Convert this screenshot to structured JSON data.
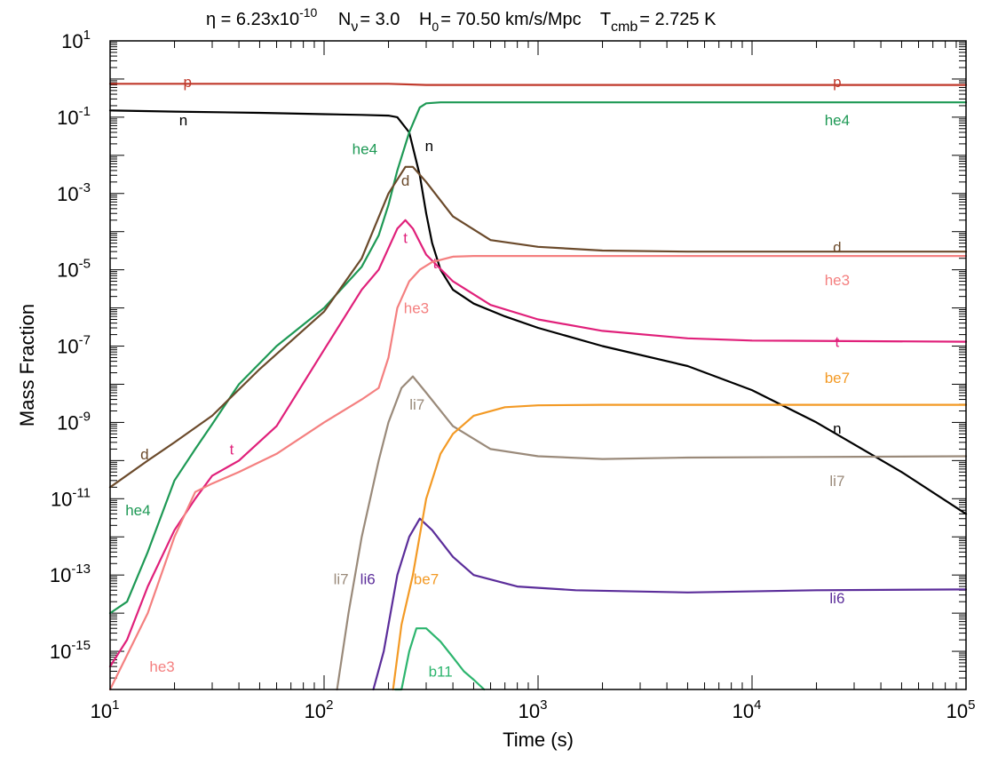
{
  "title": {
    "eta_label": "η = 6.23x10",
    "eta_exp": "-10",
    "nnu_label": "N",
    "nnu_sub": "ν",
    "nnu_value": "=  3.0",
    "h0_label": "H",
    "h0_sub": "0",
    "h0_value": "=  70.50 km/s/Mpc",
    "tcmb_label": "T",
    "tcmb_sub": "cmb",
    "tcmb_value": "=  2.725 K"
  },
  "chart_data": {
    "type": "line",
    "xlabel": "Time (s)",
    "ylabel": "Mass Fraction",
    "xscale": "log",
    "yscale": "log",
    "xlim": [
      10,
      100000
    ],
    "ylim": [
      1e-16,
      10
    ],
    "x_tick_labels": [
      {
        "base": "10",
        "exp": "1",
        "value": 10
      },
      {
        "base": "10",
        "exp": "2",
        "value": 100
      },
      {
        "base": "10",
        "exp": "3",
        "value": 1000
      },
      {
        "base": "10",
        "exp": "4",
        "value": 10000
      },
      {
        "base": "10",
        "exp": "5",
        "value": 100000
      }
    ],
    "y_tick_labels": [
      {
        "base": "10",
        "exp": "1",
        "value": 10
      },
      {
        "base": "10",
        "exp": "-1",
        "value": 0.1
      },
      {
        "base": "10",
        "exp": "-3",
        "value": 0.001
      },
      {
        "base": "10",
        "exp": "-5",
        "value": 1e-05
      },
      {
        "base": "10",
        "exp": "-7",
        "value": 1e-07
      },
      {
        "base": "10",
        "exp": "-9",
        "value": 1e-09
      },
      {
        "base": "10",
        "exp": "-11",
        "value": 1e-11
      },
      {
        "base": "10",
        "exp": "-13",
        "value": 1e-13
      },
      {
        "base": "10",
        "exp": "-15",
        "value": 1e-15
      }
    ],
    "series": [
      {
        "name": "p",
        "color": "#c0392b",
        "x": [
          10,
          100,
          200,
          300,
          1000,
          100000
        ],
        "y": [
          0.75,
          0.75,
          0.75,
          0.7,
          0.7,
          0.7
        ],
        "labels": [
          {
            "text": "p",
            "x": 23,
            "y": 0.85
          },
          {
            "text": "p",
            "x": 25000,
            "y": 0.85
          }
        ]
      },
      {
        "name": "n",
        "color": "#000000",
        "x": [
          10,
          20,
          50,
          100,
          150,
          200,
          220,
          250,
          280,
          300,
          320,
          350,
          400,
          500,
          700,
          1000,
          2000,
          5000,
          10000,
          20000,
          50000,
          100000
        ],
        "y": [
          0.15,
          0.14,
          0.13,
          0.12,
          0.115,
          0.11,
          0.1,
          0.04,
          0.003,
          0.0003,
          5e-05,
          1e-05,
          3e-06,
          1.3e-06,
          6e-07,
          3e-07,
          1e-07,
          3e-08,
          7e-09,
          1e-09,
          5e-11,
          4e-12
        ],
        "labels": [
          {
            "text": "n",
            "x": 22,
            "y": 0.085
          },
          {
            "text": "n",
            "x": 310,
            "y": 0.018
          },
          {
            "text": "n",
            "x": 25000,
            "y": 7e-10
          }
        ]
      },
      {
        "name": "he4",
        "color": "#1e9955",
        "x": [
          10,
          12,
          15,
          20,
          25,
          30,
          40,
          60,
          100,
          150,
          180,
          200,
          220,
          250,
          280,
          300,
          350,
          1000,
          100000
        ],
        "y": [
          1e-14,
          2e-14,
          4e-13,
          3e-11,
          2e-10,
          9e-10,
          1e-08,
          1e-07,
          1e-06,
          1.2e-05,
          8e-05,
          0.0005,
          0.004,
          0.04,
          0.18,
          0.23,
          0.245,
          0.245,
          0.245
        ],
        "labels": [
          {
            "text": "he4",
            "x": 13.5,
            "y": 5e-12
          },
          {
            "text": "he4",
            "x": 155,
            "y": 0.015
          },
          {
            "text": "he4",
            "x": 25000,
            "y": 0.085
          }
        ]
      },
      {
        "name": "d",
        "color": "#6b4a2b",
        "x": [
          10,
          15,
          20,
          30,
          50,
          100,
          150,
          200,
          240,
          260,
          300,
          400,
          600,
          1000,
          2000,
          5000,
          100000
        ],
        "y": [
          2e-11,
          1e-10,
          3e-10,
          1.5e-09,
          2.5e-08,
          8e-07,
          2e-05,
          0.001,
          0.005,
          0.005,
          0.002,
          0.00025,
          6e-05,
          4e-05,
          3.2e-05,
          3e-05,
          3e-05
        ],
        "labels": [
          {
            "text": "d",
            "x": 14.5,
            "y": 1.5e-10
          },
          {
            "text": "d",
            "x": 240,
            "y": 0.0022
          },
          {
            "text": "d",
            "x": 25000,
            "y": 4e-05
          }
        ]
      },
      {
        "name": "t",
        "color": "#e0207a",
        "x": [
          10,
          12,
          15,
          20,
          25,
          30,
          40,
          60,
          100,
          150,
          180,
          220,
          240,
          260,
          300,
          400,
          600,
          1000,
          2000,
          5000,
          10000,
          100000
        ],
        "y": [
          4e-16,
          2e-15,
          5e-14,
          1.5e-12,
          1e-11,
          4e-11,
          1e-10,
          8e-10,
          8e-08,
          3e-06,
          1e-05,
          0.00012,
          0.0002,
          0.00012,
          2.5e-05,
          5e-06,
          1.2e-06,
          5e-07,
          2.5e-07,
          1.6e-07,
          1.4e-07,
          1.3e-07
        ],
        "labels": [
          {
            "text": "t",
            "x": 37,
            "y": 2e-10
          },
          {
            "text": "t",
            "x": 240,
            "y": 7e-05
          },
          {
            "text": "t",
            "x": 330,
            "y": 1.5e-05
          },
          {
            "text": "t",
            "x": 25000,
            "y": 1.3e-07
          }
        ]
      },
      {
        "name": "he3",
        "color": "#f48080",
        "x": [
          10,
          15,
          20,
          25,
          30,
          40,
          60,
          100,
          150,
          180,
          200,
          220,
          250,
          280,
          320,
          400,
          500,
          1000,
          100000
        ],
        "y": [
          1e-16,
          1e-14,
          1e-12,
          1.5e-11,
          2.5e-11,
          5e-11,
          1.5e-10,
          1e-09,
          4e-09,
          8e-09,
          5e-08,
          1e-06,
          5e-06,
          1e-05,
          1.6e-05,
          2.2e-05,
          2.3e-05,
          2.3e-05,
          2.3e-05
        ],
        "labels": [
          {
            "text": "he3",
            "x": 17.5,
            "y": 4e-16
          },
          {
            "text": "he3",
            "x": 270,
            "y": 1e-06
          },
          {
            "text": "he3",
            "x": 25000,
            "y": 5.5e-06
          }
        ]
      },
      {
        "name": "li7",
        "color": "#9a8a7a",
        "x": [
          115,
          130,
          150,
          180,
          200,
          230,
          260,
          300,
          400,
          600,
          1000,
          2000,
          5000,
          100000
        ],
        "y": [
          1e-16,
          1e-14,
          1e-12,
          1e-10,
          1e-09,
          8e-09,
          1.6e-08,
          6e-09,
          8e-10,
          2e-10,
          1.3e-10,
          1.1e-10,
          1.2e-10,
          1.3e-10
        ],
        "labels": [
          {
            "text": "li7",
            "x": 272,
            "y": 3e-09
          },
          {
            "text": "li7",
            "x": 120,
            "y": 8e-14
          },
          {
            "text": "li7",
            "x": 25000,
            "y": 3e-11
          }
        ]
      },
      {
        "name": "li6",
        "color": "#5b2d9a",
        "x": [
          170,
          190,
          220,
          250,
          280,
          320,
          400,
          500,
          800,
          1500,
          5000,
          20000,
          100000
        ],
        "y": [
          1e-16,
          1e-15,
          1e-13,
          1e-12,
          3e-12,
          1.5e-12,
          3e-13,
          1e-13,
          5e-14,
          4e-14,
          3.5e-14,
          4e-14,
          4.2e-14
        ],
        "labels": [
          {
            "text": "li6",
            "x": 160,
            "y": 8e-14
          },
          {
            "text": "li6",
            "x": 25000,
            "y": 2.5e-14
          }
        ]
      },
      {
        "name": "be7",
        "color": "#f39a25",
        "x": [
          210,
          230,
          260,
          300,
          350,
          400,
          500,
          700,
          1000,
          2000,
          100000
        ],
        "y": [
          1e-16,
          5e-15,
          1e-13,
          1e-11,
          1.5e-10,
          5e-10,
          1.5e-09,
          2.5e-09,
          2.8e-09,
          2.9e-09,
          2.9e-09
        ],
        "labels": [
          {
            "text": "be7",
            "x": 300,
            "y": 8e-14
          },
          {
            "text": "be7",
            "x": 25000,
            "y": 1.5e-08
          }
        ]
      },
      {
        "name": "b11",
        "color": "#2db56e",
        "x": [
          215,
          230,
          250,
          270,
          300,
          350,
          400,
          450,
          500,
          560
        ],
        "y": [
          1e-16,
          1e-16,
          1e-15,
          4e-15,
          4e-15,
          1.8e-15,
          7e-16,
          3e-16,
          1.8e-16,
          1e-16
        ],
        "labels": [
          {
            "text": "b11",
            "x": 350,
            "y": 3e-16
          }
        ]
      }
    ]
  }
}
